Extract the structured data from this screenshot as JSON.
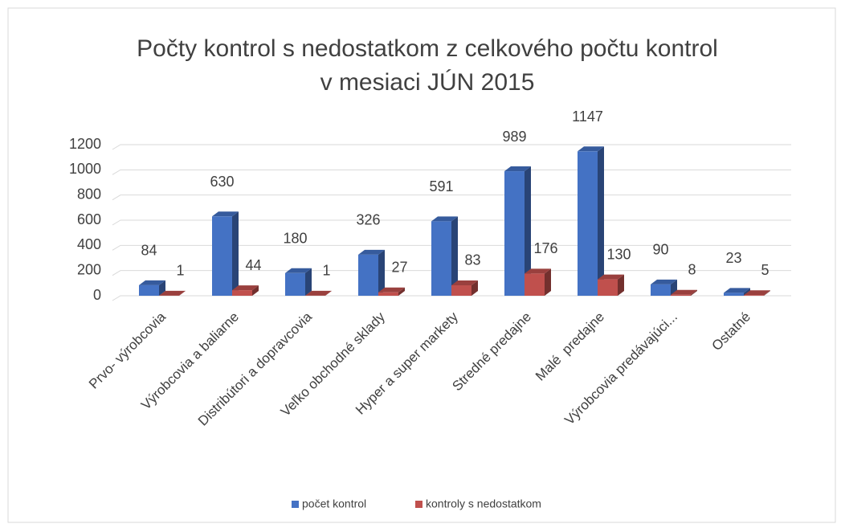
{
  "chart_data": {
    "type": "bar3d",
    "title": [
      "Počty kontrol s nedostatkom z celkového počtu kontrol",
      "v mesiaci JÚN 2015"
    ],
    "categories": [
      "Prvo- výrobcovia",
      "Výrobcovia a baliarne",
      "Distribútori a dopravcovia",
      "Veľko obchodné sklady",
      "Hyper a super markety",
      "Stredné predajne",
      "Malé  predajne",
      "Výrobcovia predávajúci...",
      "Ostatné"
    ],
    "series": [
      {
        "name": "počet kontrol",
        "color": "#4472c4",
        "values": [
          84,
          630,
          180,
          326,
          591,
          989,
          1147,
          90,
          23
        ]
      },
      {
        "name": "kontroly s nedostatkom",
        "color": "#c0504d",
        "values": [
          1,
          44,
          1,
          27,
          83,
          176,
          130,
          8,
          5
        ]
      }
    ],
    "ylim": [
      0,
      1200
    ],
    "yticks": [
      0,
      200,
      400,
      600,
      800,
      1000,
      1200
    ],
    "grid": true,
    "legend": "bottom"
  }
}
